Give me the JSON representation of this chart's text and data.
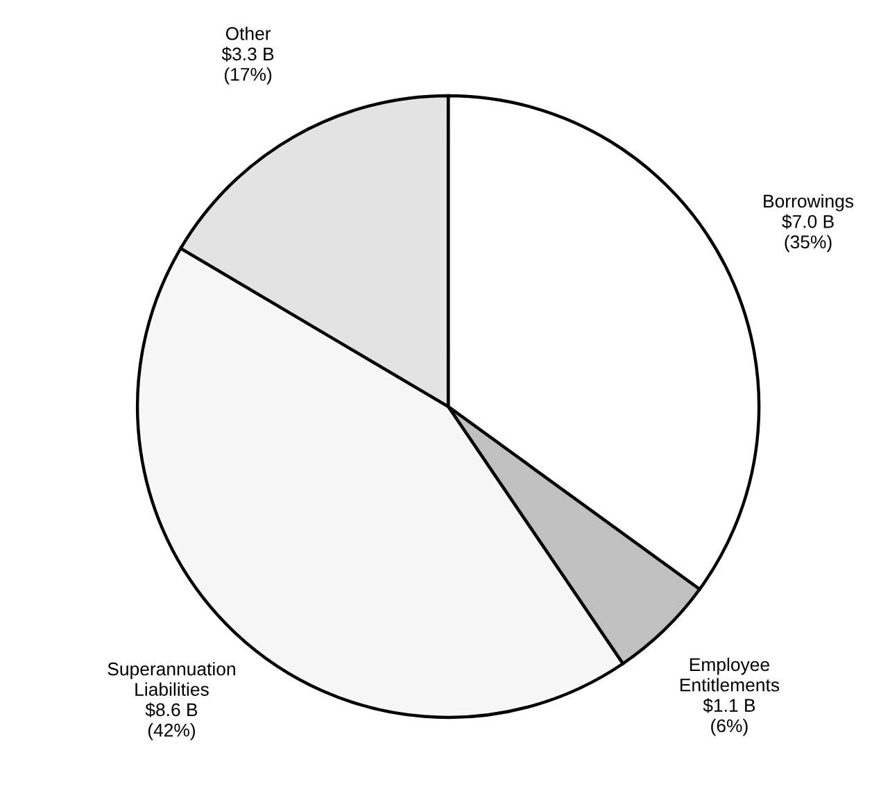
{
  "chart_data": {
    "type": "pie",
    "categories": [
      "Borrowings",
      "Employee\nEntitlements",
      "Superannuation\nLiabilities",
      "Other"
    ],
    "values": [
      7.0,
      1.1,
      8.6,
      3.3
    ],
    "value_labels": [
      "$7.0 B\n(35%)",
      "$1.1 B\n(6%)",
      "$8.6 B\n(42%)",
      "$3.3 B\n(17%)"
    ],
    "colors": [
      "#ffffff",
      "#c0c0c0",
      "#f7f7f7",
      "#e3e3e3"
    ]
  }
}
